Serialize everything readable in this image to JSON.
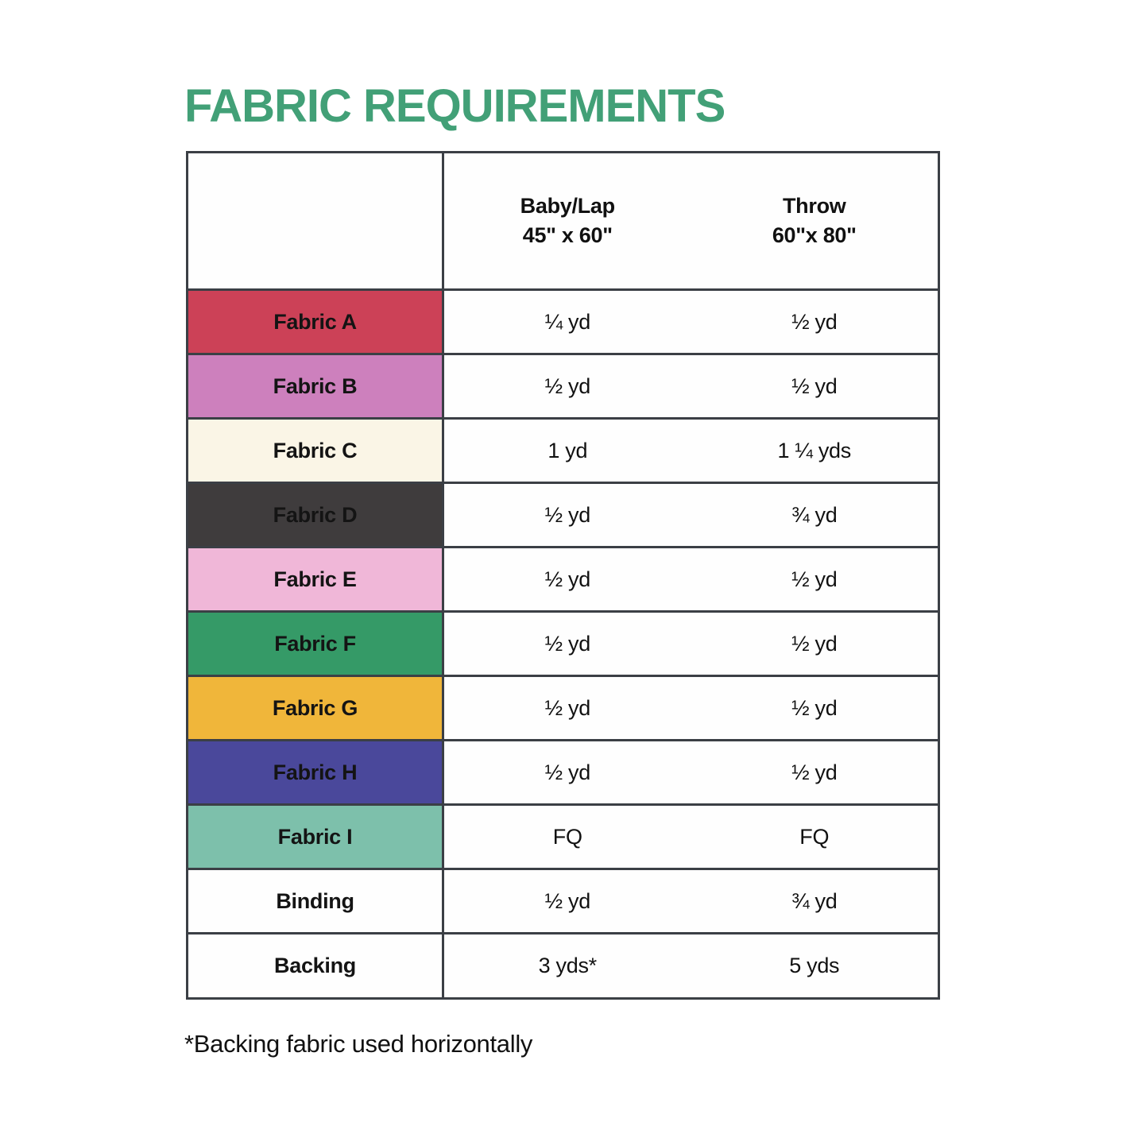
{
  "page": {
    "title": "FABRIC REQUIREMENTS",
    "title_color": "#42a077",
    "footnote": "*Backing fabric used horizontally"
  },
  "table": {
    "border_color": "#3b3f45",
    "columns": [
      {
        "label": "Baby/Lap",
        "size": "45\" x 60\""
      },
      {
        "label": "Throw",
        "size": "60\"x 80\""
      }
    ],
    "rows": [
      {
        "label": "Fabric A",
        "swatch": "#cc4157",
        "baby_lap": "¼ yd",
        "throw": "½ yd"
      },
      {
        "label": "Fabric B",
        "swatch": "#cd80bd",
        "baby_lap": "½ yd",
        "throw": "½ yd"
      },
      {
        "label": "Fabric C",
        "swatch": "#faf5e6",
        "baby_lap": "1 yd",
        "throw": "1 ¼ yds"
      },
      {
        "label": "Fabric D",
        "swatch": "#3f3c3d",
        "baby_lap": "½ yd",
        "throw": "¾ yd"
      },
      {
        "label": "Fabric E",
        "swatch": "#f0b7d8",
        "baby_lap": "½ yd",
        "throw": "½ yd"
      },
      {
        "label": "Fabric F",
        "swatch": "#359a67",
        "baby_lap": "½ yd",
        "throw": "½ yd"
      },
      {
        "label": "Fabric G",
        "swatch": "#f0b63a",
        "baby_lap": "½ yd",
        "throw": "½ yd"
      },
      {
        "label": "Fabric H",
        "swatch": "#4a489b",
        "baby_lap": "½ yd",
        "throw": "½ yd"
      },
      {
        "label": "Fabric I",
        "swatch": "#7dc0ab",
        "baby_lap": "FQ",
        "throw": "FQ"
      },
      {
        "label": "Binding",
        "swatch": "",
        "baby_lap": "½ yd",
        "throw": "¾ yd"
      },
      {
        "label": "Backing",
        "swatch": "",
        "baby_lap": "3 yds*",
        "throw": "5 yds"
      }
    ]
  }
}
